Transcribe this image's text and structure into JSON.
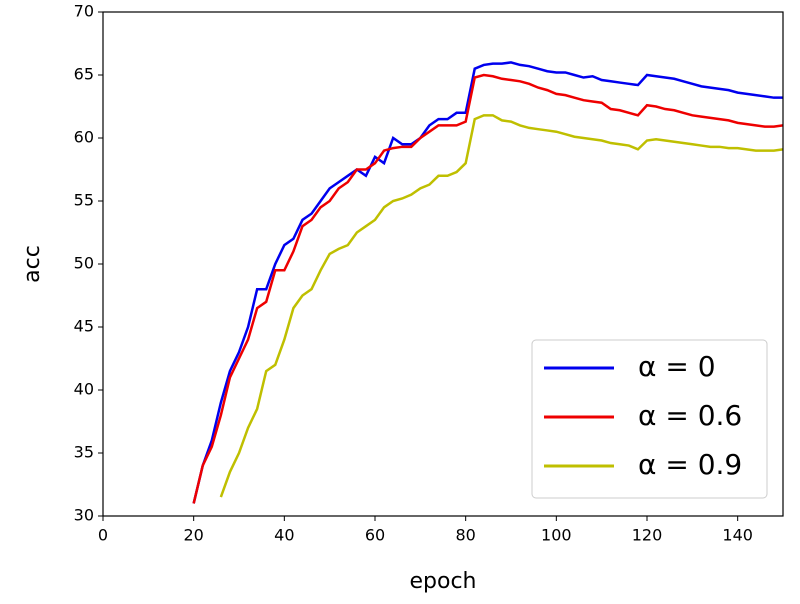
{
  "chart_data": {
    "type": "line",
    "xlabel": "epoch",
    "ylabel": "acc",
    "x": [
      20,
      22,
      24,
      26,
      28,
      30,
      32,
      34,
      36,
      38,
      40,
      42,
      44,
      46,
      48,
      50,
      52,
      54,
      56,
      58,
      60,
      62,
      64,
      66,
      68,
      70,
      72,
      74,
      76,
      78,
      80,
      82,
      84,
      86,
      88,
      90,
      92,
      94,
      96,
      98,
      100,
      102,
      104,
      106,
      108,
      110,
      112,
      114,
      116,
      118,
      120,
      122,
      124,
      126,
      128,
      130,
      132,
      134,
      136,
      138,
      140,
      142,
      144,
      146,
      148,
      150
    ],
    "series": [
      {
        "name": "α = 0",
        "color": "#0000ee",
        "values": [
          31,
          34,
          36,
          39,
          41.5,
          43,
          45,
          48,
          48,
          50,
          51.5,
          52,
          53.5,
          54,
          55,
          56,
          56.5,
          57,
          57.5,
          57,
          58.5,
          58,
          60,
          59.5,
          59.5,
          60,
          61,
          61.5,
          61.5,
          62,
          62,
          65.5,
          65.8,
          65.9,
          65.9,
          66,
          65.8,
          65.7,
          65.5,
          65.3,
          65.2,
          65.2,
          65,
          64.8,
          64.9,
          64.6,
          64.5,
          64.4,
          64.3,
          64.2,
          65,
          64.9,
          64.8,
          64.7,
          64.5,
          64.3,
          64.1,
          64,
          63.9,
          63.8,
          63.6,
          63.5,
          63.4,
          63.3,
          63.2,
          63.2
        ]
      },
      {
        "name": "α = 0.6",
        "color": "#ee0000",
        "values": [
          31,
          34,
          35.5,
          38,
          41,
          42.5,
          44,
          46.5,
          47,
          49.5,
          49.5,
          51,
          53,
          53.5,
          54.5,
          55,
          56,
          56.5,
          57.5,
          57.5,
          58,
          59,
          59.2,
          59.3,
          59.3,
          60,
          60.5,
          61,
          61,
          61,
          61.3,
          64.8,
          65,
          64.9,
          64.7,
          64.6,
          64.5,
          64.3,
          64,
          63.8,
          63.5,
          63.4,
          63.2,
          63,
          62.9,
          62.8,
          62.3,
          62.2,
          62,
          61.8,
          62.6,
          62.5,
          62.3,
          62.2,
          62,
          61.8,
          61.7,
          61.6,
          61.5,
          61.4,
          61.2,
          61.1,
          61,
          60.9,
          60.9,
          61
        ]
      },
      {
        "name": "α = 0.9",
        "color": "#bfbf00",
        "values": [
          null,
          null,
          null,
          31.5,
          33.5,
          35,
          37,
          38.5,
          41.5,
          42,
          44,
          46.5,
          47.5,
          48,
          49.5,
          50.8,
          51.2,
          51.5,
          52.5,
          53,
          53.5,
          54.5,
          55,
          55.2,
          55.5,
          56,
          56.3,
          57,
          57,
          57.3,
          58,
          61.5,
          61.8,
          61.8,
          61.4,
          61.3,
          61,
          60.8,
          60.7,
          60.6,
          60.5,
          60.3,
          60.1,
          60,
          59.9,
          59.8,
          59.6,
          59.5,
          59.4,
          59.1,
          59.8,
          59.9,
          59.8,
          59.7,
          59.6,
          59.5,
          59.4,
          59.3,
          59.3,
          59.2,
          59.2,
          59.1,
          59,
          59,
          59,
          59.1
        ]
      }
    ],
    "xlim": [
      0,
      150
    ],
    "xticks": [
      0,
      20,
      40,
      60,
      80,
      100,
      120,
      140
    ],
    "ylim": [
      30,
      70
    ],
    "yticks": [
      30,
      35,
      40,
      45,
      50,
      55,
      60,
      65,
      70
    ],
    "legend": "lower right"
  }
}
